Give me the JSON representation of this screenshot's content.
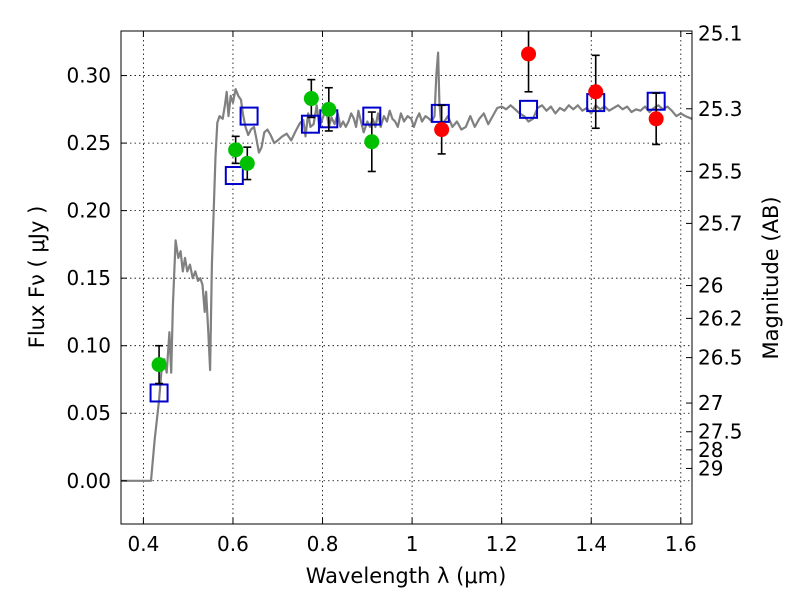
{
  "chart_data": {
    "type": "scatter",
    "xlabel": "Wavelength  λ (μm)",
    "ylabel": "Flux  Fν  ( μJy )",
    "y2label": "Magnitude (AB)",
    "xlim": [
      0.35,
      1.625
    ],
    "ylim": [
      -0.032,
      0.333
    ],
    "grid": true,
    "x_ticks": [
      {
        "value": 0.4,
        "label": "0.4"
      },
      {
        "value": 0.6,
        "label": "0.6"
      },
      {
        "value": 0.8,
        "label": "0.8"
      },
      {
        "value": 1.0,
        "label": "1"
      },
      {
        "value": 1.2,
        "label": "1.2"
      },
      {
        "value": 1.4,
        "label": "1.4"
      },
      {
        "value": 1.6,
        "label": "1.6"
      }
    ],
    "y_ticks": [
      {
        "value": 0.0,
        "label": "0.00"
      },
      {
        "value": 0.05,
        "label": "0.05"
      },
      {
        "value": 0.1,
        "label": "0.10"
      },
      {
        "value": 0.15,
        "label": "0.15"
      },
      {
        "value": 0.2,
        "label": "0.20"
      },
      {
        "value": 0.25,
        "label": "0.25"
      },
      {
        "value": 0.3,
        "label": "0.30"
      }
    ],
    "mag_ticks": [
      {
        "mag": 25.1,
        "label": "25.1"
      },
      {
        "mag": 25.3,
        "label": "25.3"
      },
      {
        "mag": 25.5,
        "label": "25.5"
      },
      {
        "mag": 25.7,
        "label": "25.7"
      },
      {
        "mag": 26,
        "label": "26"
      },
      {
        "mag": 26.2,
        "label": "26.2"
      },
      {
        "mag": 26.5,
        "label": "26.5"
      },
      {
        "mag": 27,
        "label": "27"
      },
      {
        "mag": 27.5,
        "label": "27.5"
      },
      {
        "mag": 28,
        "label": "28"
      },
      {
        "mag": 29,
        "label": "29"
      }
    ],
    "model_spectrum": {
      "color": "#808080",
      "points": [
        [
          0.35,
          0.0
        ],
        [
          0.41,
          0.0
        ],
        [
          0.417,
          0.0
        ],
        [
          0.425,
          0.03
        ],
        [
          0.435,
          0.06
        ],
        [
          0.44,
          0.08
        ],
        [
          0.447,
          0.09
        ],
        [
          0.452,
          0.08
        ],
        [
          0.458,
          0.11
        ],
        [
          0.462,
          0.08
        ],
        [
          0.466,
          0.13
        ],
        [
          0.472,
          0.178
        ],
        [
          0.478,
          0.165
        ],
        [
          0.483,
          0.17
        ],
        [
          0.488,
          0.155
        ],
        [
          0.493,
          0.165
        ],
        [
          0.498,
          0.155
        ],
        [
          0.504,
          0.16
        ],
        [
          0.51,
          0.15
        ],
        [
          0.516,
          0.155
        ],
        [
          0.522,
          0.148
        ],
        [
          0.527,
          0.15
        ],
        [
          0.532,
          0.145
        ],
        [
          0.537,
          0.125
        ],
        [
          0.54,
          0.14
        ],
        [
          0.545,
          0.11
        ],
        [
          0.549,
          0.082
        ],
        [
          0.553,
          0.16
        ],
        [
          0.557,
          0.2
        ],
        [
          0.561,
          0.24
        ],
        [
          0.565,
          0.265
        ],
        [
          0.57,
          0.27
        ],
        [
          0.577,
          0.268
        ],
        [
          0.582,
          0.278
        ],
        [
          0.586,
          0.288
        ],
        [
          0.59,
          0.27
        ],
        [
          0.595,
          0.285
        ],
        [
          0.6,
          0.28
        ],
        [
          0.606,
          0.29
        ],
        [
          0.612,
          0.285
        ],
        [
          0.618,
          0.282
        ],
        [
          0.622,
          0.272
        ],
        [
          0.628,
          0.262
        ],
        [
          0.634,
          0.256
        ],
        [
          0.64,
          0.26
        ],
        [
          0.647,
          0.262
        ],
        [
          0.652,
          0.254
        ],
        [
          0.658,
          0.243
        ],
        [
          0.664,
          0.247
        ],
        [
          0.67,
          0.258
        ],
        [
          0.677,
          0.26
        ],
        [
          0.684,
          0.256
        ],
        [
          0.692,
          0.25
        ],
        [
          0.7,
          0.252
        ],
        [
          0.71,
          0.255
        ],
        [
          0.72,
          0.257
        ],
        [
          0.73,
          0.252
        ],
        [
          0.74,
          0.259
        ],
        [
          0.75,
          0.265
        ],
        [
          0.757,
          0.267
        ],
        [
          0.762,
          0.255
        ],
        [
          0.768,
          0.272
        ],
        [
          0.773,
          0.262
        ],
        [
          0.78,
          0.264
        ],
        [
          0.787,
          0.278
        ],
        [
          0.793,
          0.262
        ],
        [
          0.8,
          0.268
        ],
        [
          0.808,
          0.276
        ],
        [
          0.814,
          0.262
        ],
        [
          0.82,
          0.269
        ],
        [
          0.827,
          0.264
        ],
        [
          0.834,
          0.272
        ],
        [
          0.84,
          0.262
        ],
        [
          0.846,
          0.266
        ],
        [
          0.852,
          0.262
        ],
        [
          0.858,
          0.266
        ],
        [
          0.864,
          0.272
        ],
        [
          0.87,
          0.268
        ],
        [
          0.875,
          0.262
        ],
        [
          0.88,
          0.274
        ],
        [
          0.886,
          0.266
        ],
        [
          0.892,
          0.258
        ],
        [
          0.9,
          0.266
        ],
        [
          0.906,
          0.262
        ],
        [
          0.912,
          0.268
        ],
        [
          0.918,
          0.262
        ],
        [
          0.924,
          0.272
        ],
        [
          0.93,
          0.262
        ],
        [
          0.937,
          0.27
        ],
        [
          0.944,
          0.266
        ],
        [
          0.95,
          0.274
        ],
        [
          0.956,
          0.268
        ],
        [
          0.962,
          0.266
        ],
        [
          0.968,
          0.262
        ],
        [
          0.975,
          0.272
        ],
        [
          0.982,
          0.266
        ],
        [
          0.99,
          0.27
        ],
        [
          0.998,
          0.268
        ],
        [
          1.004,
          0.262
        ],
        [
          1.01,
          0.268
        ],
        [
          1.016,
          0.272
        ],
        [
          1.022,
          0.266
        ],
        [
          1.03,
          0.27
        ],
        [
          1.038,
          0.268
        ],
        [
          1.044,
          0.266
        ],
        [
          1.05,
          0.27
        ],
        [
          1.054,
          0.3
        ],
        [
          1.058,
          0.317
        ],
        [
          1.061,
          0.28
        ],
        [
          1.066,
          0.26
        ],
        [
          1.072,
          0.266
        ],
        [
          1.08,
          0.27
        ],
        [
          1.09,
          0.262
        ],
        [
          1.1,
          0.266
        ],
        [
          1.11,
          0.26
        ],
        [
          1.12,
          0.262
        ],
        [
          1.13,
          0.27
        ],
        [
          1.14,
          0.262
        ],
        [
          1.15,
          0.268
        ],
        [
          1.16,
          0.272
        ],
        [
          1.17,
          0.264
        ],
        [
          1.18,
          0.27
        ],
        [
          1.19,
          0.276
        ],
        [
          1.2,
          0.277
        ],
        [
          1.21,
          0.275
        ],
        [
          1.22,
          0.278
        ],
        [
          1.23,
          0.275
        ],
        [
          1.24,
          0.272
        ],
        [
          1.25,
          0.27
        ],
        [
          1.26,
          0.266
        ],
        [
          1.27,
          0.268
        ],
        [
          1.28,
          0.276
        ],
        [
          1.29,
          0.278
        ],
        [
          1.3,
          0.274
        ],
        [
          1.31,
          0.277
        ],
        [
          1.32,
          0.272
        ],
        [
          1.33,
          0.276
        ],
        [
          1.34,
          0.274
        ],
        [
          1.35,
          0.278
        ],
        [
          1.36,
          0.275
        ],
        [
          1.37,
          0.278
        ],
        [
          1.38,
          0.274
        ],
        [
          1.39,
          0.276
        ],
        [
          1.4,
          0.272
        ],
        [
          1.41,
          0.278
        ],
        [
          1.42,
          0.275
        ],
        [
          1.43,
          0.277
        ],
        [
          1.44,
          0.274
        ],
        [
          1.45,
          0.276
        ],
        [
          1.46,
          0.278
        ],
        [
          1.47,
          0.275
        ],
        [
          1.48,
          0.277
        ],
        [
          1.49,
          0.273
        ],
        [
          1.5,
          0.275
        ],
        [
          1.51,
          0.274
        ],
        [
          1.52,
          0.277
        ],
        [
          1.53,
          0.273
        ],
        [
          1.54,
          0.276
        ],
        [
          1.55,
          0.278
        ],
        [
          1.56,
          0.275
        ],
        [
          1.57,
          0.277
        ],
        [
          1.58,
          0.274
        ],
        [
          1.59,
          0.27
        ],
        [
          1.6,
          0.272
        ],
        [
          1.61,
          0.27
        ],
        [
          1.625,
          0.268
        ]
      ]
    },
    "model_photometry": {
      "color": "#0000cc",
      "points": [
        [
          0.435,
          0.065
        ],
        [
          0.603,
          0.226
        ],
        [
          0.636,
          0.27
        ],
        [
          0.773,
          0.264
        ],
        [
          0.814,
          0.268
        ],
        [
          0.91,
          0.27
        ],
        [
          1.063,
          0.272
        ],
        [
          1.26,
          0.275
        ],
        [
          1.41,
          0.28
        ],
        [
          1.545,
          0.281
        ]
      ]
    },
    "observed_optical": {
      "color": "#00c000",
      "points": [
        {
          "x": 0.435,
          "y": 0.086,
          "err": 0.014
        },
        {
          "x": 0.606,
          "y": 0.245,
          "err": 0.01
        },
        {
          "x": 0.632,
          "y": 0.235,
          "err": 0.012
        },
        {
          "x": 0.775,
          "y": 0.283,
          "err": 0.014
        },
        {
          "x": 0.814,
          "y": 0.275,
          "err": 0.016
        },
        {
          "x": 0.91,
          "y": 0.251,
          "err": 0.022
        }
      ]
    },
    "observed_infrared": {
      "color": "#ff0000",
      "points": [
        {
          "x": 1.066,
          "y": 0.26,
          "err": 0.018
        },
        {
          "x": 1.26,
          "y": 0.316,
          "err": 0.028
        },
        {
          "x": 1.41,
          "y": 0.288,
          "err": 0.027
        },
        {
          "x": 1.545,
          "y": 0.268,
          "err": 0.019
        }
      ]
    }
  }
}
